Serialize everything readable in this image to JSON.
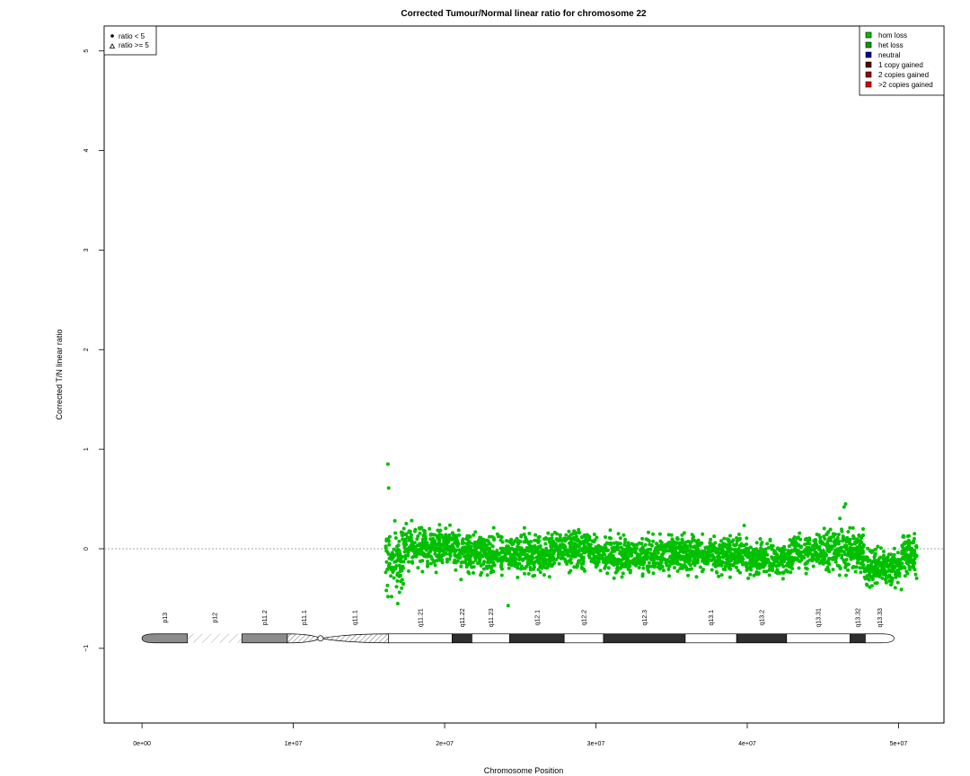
{
  "chart_data": {
    "type": "scatter",
    "title": "Corrected Tumour/Normal linear ratio for chromosome  22",
    "xlabel": "Chromosome Position",
    "ylabel": "Corrected T/N linear ratio",
    "xlim": [
      -2500000,
      53000000
    ],
    "ylim": [
      -1.75,
      5.25
    ],
    "x_ticks": [
      0,
      10000000,
      20000000,
      30000000,
      40000000,
      50000000
    ],
    "x_tick_labels": [
      "0e+00",
      "1e+07",
      "2e+07",
      "3e+07",
      "4e+07",
      "5e+07"
    ],
    "y_ticks": [
      -1,
      0,
      1,
      2,
      3,
      4,
      5
    ],
    "y_tick_labels": [
      "−1",
      "0",
      "1",
      "2",
      "3",
      "4",
      "5"
    ],
    "reference_line_y": 0,
    "point_color": "#00c000",
    "series_profile": {
      "x_start": 16100000,
      "x_end": 51200000,
      "point_count": 3000,
      "segments": [
        {
          "x_from": 16100000,
          "x_to": 17300000,
          "mean": -0.12,
          "spread": 0.18
        },
        {
          "x_from": 17300000,
          "x_to": 21000000,
          "mean": 0.02,
          "spread": 0.12
        },
        {
          "x_from": 21000000,
          "x_to": 27000000,
          "mean": -0.05,
          "spread": 0.12
        },
        {
          "x_from": 27000000,
          "x_to": 30000000,
          "mean": 0.0,
          "spread": 0.12
        },
        {
          "x_from": 30000000,
          "x_to": 40000000,
          "mean": -0.06,
          "spread": 0.11
        },
        {
          "x_from": 40000000,
          "x_to": 43000000,
          "mean": -0.1,
          "spread": 0.1
        },
        {
          "x_from": 43000000,
          "x_to": 47700000,
          "mean": -0.03,
          "spread": 0.12
        },
        {
          "x_from": 47700000,
          "x_to": 50200000,
          "mean": -0.18,
          "spread": 0.1
        },
        {
          "x_from": 50200000,
          "x_to": 51200000,
          "mean": -0.05,
          "spread": 0.12
        }
      ],
      "outliers": [
        {
          "x": 16250000,
          "y": 0.85
        },
        {
          "x": 16300000,
          "y": 0.61
        },
        {
          "x": 16900000,
          "y": -0.55
        },
        {
          "x": 46500000,
          "y": 0.45
        },
        {
          "x": 46400000,
          "y": 0.42
        },
        {
          "x": 24200000,
          "y": -0.57
        }
      ]
    },
    "legend_shapes": {
      "position": "top-left",
      "items": [
        {
          "label": "ratio < 5",
          "symbol": "dot"
        },
        {
          "label": "ratio >= 5",
          "symbol": "triangle"
        }
      ]
    },
    "legend_colors": {
      "position": "top-right",
      "items": [
        {
          "label": "hom loss",
          "color": "#00c000"
        },
        {
          "label": "het loss",
          "color": "#00a000"
        },
        {
          "label": "neutral",
          "color": "#0000a0"
        },
        {
          "label": "1 copy gained",
          "color": "#600000"
        },
        {
          "label": "2 copies gained",
          "color": "#a00000"
        },
        {
          "label": ">2 copies gained",
          "color": "#e00000"
        }
      ]
    },
    "ideogram": {
      "y": -0.9,
      "centromere_x": 11800000,
      "bands": [
        {
          "name": "p13",
          "start": 0,
          "end": 3000000,
          "stain": "gpos50"
        },
        {
          "name": "p12",
          "start": 3000000,
          "end": 6600000,
          "stain": "stalk"
        },
        {
          "name": "p11.2",
          "start": 6600000,
          "end": 9600000,
          "stain": "gpos50"
        },
        {
          "name": "p11.1",
          "start": 9600000,
          "end": 11800000,
          "stain": "acen"
        },
        {
          "name": "q11.1",
          "start": 11800000,
          "end": 16300000,
          "stain": "acen"
        },
        {
          "name": "q11.21",
          "start": 16300000,
          "end": 20500000,
          "stain": "gneg"
        },
        {
          "name": "q11.22",
          "start": 20500000,
          "end": 21800000,
          "stain": "gpos100"
        },
        {
          "name": "q11.23",
          "start": 21800000,
          "end": 24300000,
          "stain": "gneg"
        },
        {
          "name": "q12.1",
          "start": 24300000,
          "end": 27900000,
          "stain": "gpos100"
        },
        {
          "name": "q12.2",
          "start": 27900000,
          "end": 30500000,
          "stain": "gneg"
        },
        {
          "name": "q12.3",
          "start": 30500000,
          "end": 35900000,
          "stain": "gpos100"
        },
        {
          "name": "q13.1",
          "start": 35900000,
          "end": 39300000,
          "stain": "gneg"
        },
        {
          "name": "q13.2",
          "start": 39300000,
          "end": 42600000,
          "stain": "gpos100"
        },
        {
          "name": "q13.31",
          "start": 42600000,
          "end": 46800000,
          "stain": "gneg"
        },
        {
          "name": "q13.32",
          "start": 46800000,
          "end": 47800000,
          "stain": "gpos100"
        },
        {
          "name": "q13.33",
          "start": 47800000,
          "end": 49700000,
          "stain": "gneg"
        }
      ]
    }
  }
}
